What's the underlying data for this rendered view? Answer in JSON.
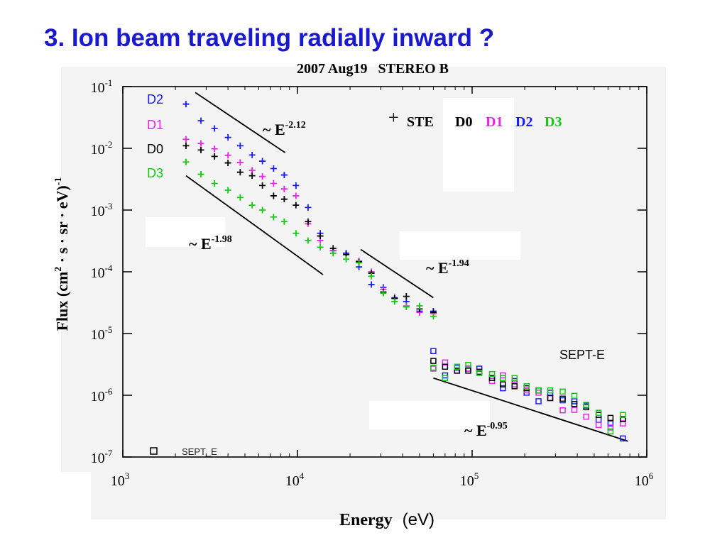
{
  "slide": {
    "title": "3. Ion beam traveling radially inward ?"
  },
  "chart_data": {
    "type": "scatter",
    "title": "2007 Aug19   STEREO B",
    "xlabel": "Energy",
    "xlabel_unit": "(eV)",
    "ylabel": "Flux (cm",
    "ylabel_parts": [
      "Flux (cm",
      "2",
      " · s · sr · eV)",
      "-1"
    ],
    "xscale": "log",
    "yscale": "log",
    "xlim": [
      1000,
      1000000
    ],
    "ylim": [
      1e-07,
      0.1
    ],
    "x_ticks": [
      {
        "base": "10",
        "exp": "3",
        "value": 1000
      },
      {
        "base": "10",
        "exp": "4",
        "value": 10000
      },
      {
        "base": "10",
        "exp": "5",
        "value": 100000
      },
      {
        "base": "10",
        "exp": "6",
        "value": 1000000
      }
    ],
    "y_ticks": [
      {
        "base": "10",
        "exp": "-1",
        "value": 0.1
      },
      {
        "base": "10",
        "exp": "-2",
        "value": 0.01
      },
      {
        "base": "10",
        "exp": "-3",
        "value": 0.001
      },
      {
        "base": "10",
        "exp": "-4",
        "value": 0.0001
      },
      {
        "base": "10",
        "exp": "-5",
        "value": 1e-05
      },
      {
        "base": "10",
        "exp": "-6",
        "value": 1e-06
      },
      {
        "base": "10",
        "exp": "-7",
        "value": 1e-07
      }
    ],
    "legend_left": [
      {
        "label": "D2",
        "color": "#1a1aff"
      },
      {
        "label": "D1",
        "color": "#ee22ee"
      },
      {
        "label": "D0",
        "color": "#000000"
      },
      {
        "label": "D3",
        "color": "#11cc11"
      }
    ],
    "legend_ste": {
      "marker": "+",
      "prefix": "STE",
      "labels": [
        "D0",
        "D1",
        "D2",
        "D3"
      ],
      "colors": [
        "#000000",
        "#ee22ee",
        "#1a1aff",
        "#11cc11"
      ]
    },
    "legend_sept": {
      "label": "SEPT_E"
    },
    "region_label": "SEPT-E",
    "fit_lines": [
      {
        "prefix": "~ E",
        "exponent": "-2.12",
        "x": [
          2600,
          8500
        ],
        "y": [
          0.08,
          0.0085
        ]
      },
      {
        "prefix": "~ E",
        "exponent": "-1.98",
        "x": [
          2300,
          14000
        ],
        "y": [
          0.0036,
          9e-05
        ]
      },
      {
        "prefix": "~ E",
        "exponent": "-1.94",
        "x": [
          23000,
          60000
        ],
        "y": [
          0.00023,
          3.8e-05
        ]
      },
      {
        "prefix": "~ E",
        "exponent": "-0.95",
        "x": [
          60000,
          780000
        ],
        "y": [
          1.9e-06,
          1.8e-07
        ]
      }
    ],
    "series": [
      {
        "name": "D2",
        "instrument": "STE",
        "marker": "plus",
        "color": "#1a1aff",
        "x": [
          2300,
          2800,
          3350,
          4000,
          4700,
          5500,
          6300,
          7300,
          8400,
          9800,
          11500,
          13500,
          16000,
          19000,
          22500,
          26500,
          31000,
          36000,
          42000,
          50000,
          60000
        ],
        "y": [
          0.052,
          0.028,
          0.021,
          0.015,
          0.011,
          0.0078,
          0.0062,
          0.0047,
          0.0037,
          0.0025,
          0.0011,
          0.00042,
          0.00022,
          0.0002,
          0.00012,
          6.2e-05,
          5.6e-05,
          3.8e-05,
          3.3e-05,
          2.3e-05,
          2.3e-05
        ]
      },
      {
        "name": "D1",
        "instrument": "STE",
        "marker": "plus",
        "color": "#ee22ee",
        "x": [
          2300,
          2800,
          3350,
          4000,
          4700,
          5500,
          6300,
          7300,
          8400,
          9800,
          11500,
          13500,
          16000,
          19000,
          22500,
          26500,
          31000,
          36000,
          42000,
          50000,
          60000
        ],
        "y": [
          0.014,
          0.012,
          0.0098,
          0.0077,
          0.0059,
          0.0044,
          0.0035,
          0.0027,
          0.0022,
          0.0017,
          0.0006,
          0.00032,
          0.00022,
          0.00019,
          0.00015,
          0.0001,
          5.2e-05,
          3.7e-05,
          2.8e-05,
          2.2e-05,
          2.1e-05
        ]
      },
      {
        "name": "D0",
        "instrument": "STE",
        "marker": "plus",
        "color": "#000000",
        "x": [
          2300,
          2800,
          3350,
          4000,
          4700,
          5500,
          6300,
          7300,
          8400,
          9800,
          11500,
          13500,
          16000,
          19000,
          22500,
          26500,
          31000,
          36000,
          42000,
          50000,
          60000
        ],
        "y": [
          0.011,
          0.0094,
          0.0074,
          0.0058,
          0.0041,
          0.0036,
          0.0025,
          0.0017,
          0.0015,
          0.0012,
          0.00065,
          0.00038,
          0.00024,
          0.00019,
          0.000145,
          9.5e-05,
          4.7e-05,
          3.7e-05,
          4e-05,
          2.5e-05,
          2.2e-05
        ]
      },
      {
        "name": "D3",
        "instrument": "STE",
        "marker": "plus",
        "color": "#11cc11",
        "x": [
          2300,
          2800,
          3350,
          4000,
          4700,
          5500,
          6300,
          7300,
          8400,
          9800,
          11500,
          13500,
          16000,
          19000,
          22500,
          26500,
          31000,
          36000,
          42000,
          50000,
          60000
        ],
        "y": [
          0.006,
          0.0038,
          0.0027,
          0.0021,
          0.0016,
          0.0012,
          0.001,
          0.00077,
          0.00065,
          0.00042,
          0.00032,
          0.00025,
          0.0002,
          0.00016,
          0.00014,
          8.5e-05,
          4.5e-05,
          3.3e-05,
          2.7e-05,
          2.8e-05,
          1.9e-05
        ]
      },
      {
        "name": "D2",
        "instrument": "SEPT_E",
        "marker": "square",
        "color": "#1a1aff",
        "x": [
          60000,
          70000,
          82000,
          95000,
          110000,
          130000,
          150000,
          175000,
          205000,
          240000,
          280000,
          330000,
          385000,
          450000,
          530000,
          620000,
          730000
        ],
        "y": [
          5.2e-06,
          2.1e-06,
          2.8e-06,
          2.7e-06,
          2.7e-06,
          1.9e-06,
          1.3e-06,
          1.7e-06,
          1.1e-06,
          8e-07,
          1.1e-06,
          8.3e-07,
          8e-07,
          6.8e-07,
          4e-07,
          3.5e-07,
          2e-07
        ]
      },
      {
        "name": "D1",
        "instrument": "SEPT_E",
        "marker": "square",
        "color": "#ee22ee",
        "x": [
          60000,
          70000,
          82000,
          95000,
          110000,
          130000,
          150000,
          175000,
          205000,
          240000,
          280000,
          330000,
          385000,
          450000,
          530000,
          620000,
          730000
        ],
        "y": [
          2.7e-06,
          3.4e-06,
          2.5e-06,
          2.7e-06,
          2.4e-06,
          1.7e-06,
          2.1e-06,
          1.5e-06,
          1.2e-06,
          1.1e-06,
          9e-07,
          5.7e-07,
          5.8e-07,
          4.5e-07,
          3.3e-07,
          3e-07,
          3.5e-07
        ]
      },
      {
        "name": "D0",
        "instrument": "SEPT_E",
        "marker": "square",
        "color": "#000000",
        "x": [
          60000,
          70000,
          82000,
          95000,
          110000,
          130000,
          150000,
          175000,
          205000,
          240000,
          280000,
          330000,
          385000,
          450000,
          530000,
          620000,
          730000
        ],
        "y": [
          3.6e-06,
          2.9e-06,
          2.5e-06,
          2.5e-06,
          2.4e-06,
          1.9e-06,
          1.5e-06,
          1.4e-06,
          1.3e-06,
          1.2e-06,
          9e-07,
          8.8e-07,
          7.2e-07,
          6.4e-07,
          4.8e-07,
          4.3e-07,
          4.1e-07
        ]
      },
      {
        "name": "D3",
        "instrument": "SEPT_E",
        "marker": "square",
        "color": "#11cc11",
        "x": [
          60000,
          70000,
          82000,
          95000,
          110000,
          130000,
          150000,
          175000,
          205000,
          240000,
          280000,
          330000,
          385000,
          450000,
          530000,
          620000,
          730000
        ],
        "y": [
          2.8e-06,
          1.9e-06,
          2.9e-06,
          3.1e-06,
          2.3e-06,
          2.2e-06,
          1.9e-06,
          1.9e-06,
          1.4e-06,
          1.2e-06,
          1.2e-06,
          1.15e-06,
          9.8e-07,
          7e-07,
          5.2e-07,
          2.6e-07,
          4.8e-07
        ]
      }
    ],
    "grid": false,
    "colors": {
      "title": "#1a1acc",
      "panel": "#f4f4f4",
      "axis": "#000000"
    }
  }
}
